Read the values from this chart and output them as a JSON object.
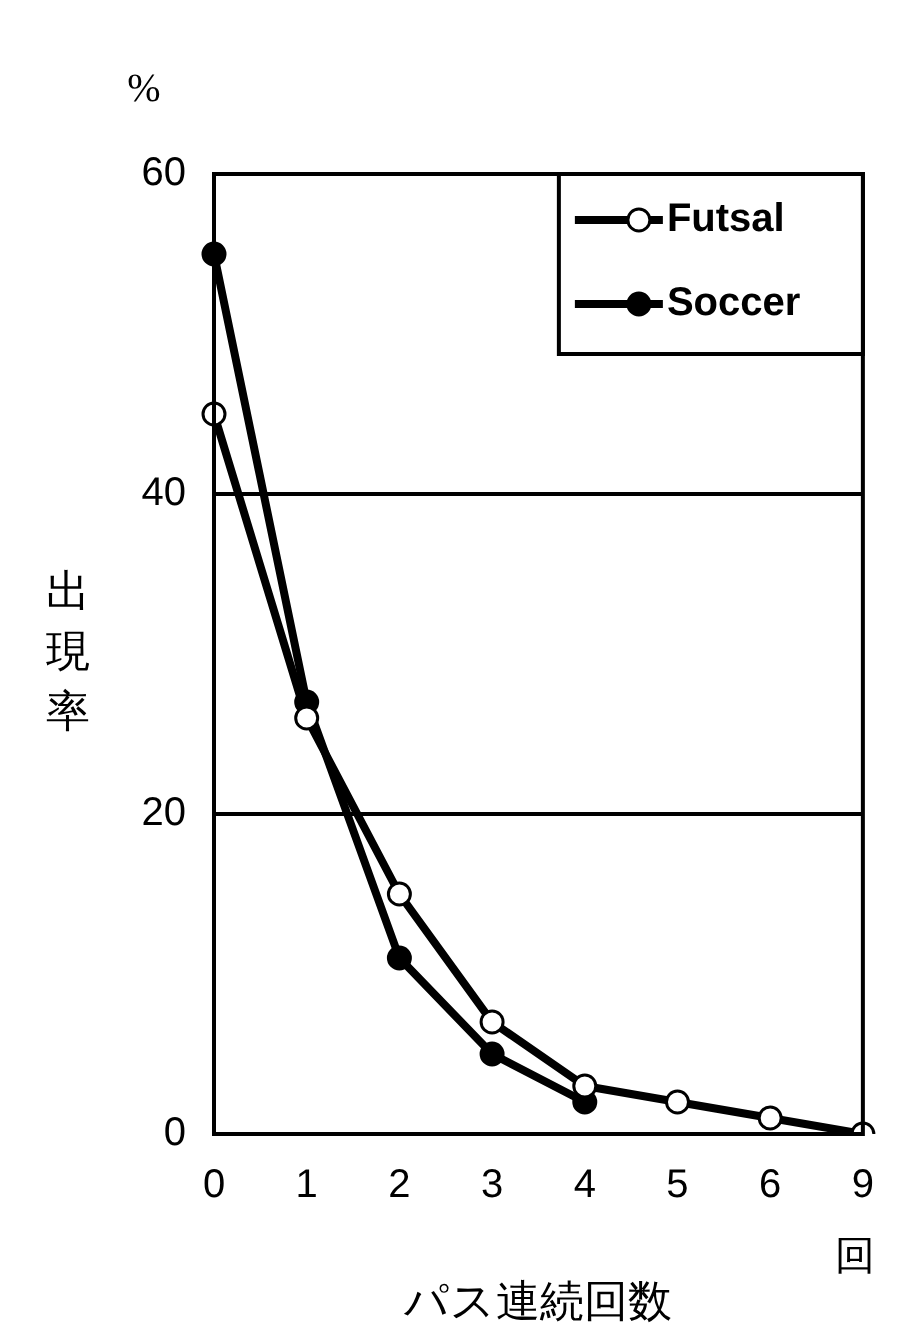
{
  "chart_data": {
    "type": "line",
    "ylabel": "出現率",
    "xlabel": "パス連続回数",
    "annotations": [
      "%",
      "回"
    ],
    "categories": [
      "0",
      "1",
      "2",
      "3",
      "4",
      "5",
      "6",
      "9"
    ],
    "series": [
      {
        "name": "Futsal",
        "color": "#ffffff",
        "values": [
          45,
          26,
          15,
          7,
          3,
          2,
          1,
          0
        ]
      },
      {
        "name": "Soccer",
        "color": "#000000",
        "values": [
          55,
          27,
          11,
          5,
          2,
          null,
          null,
          null
        ]
      }
    ],
    "ylim": [
      0,
      60
    ],
    "yticks": [
      0,
      20,
      40,
      60
    ],
    "grid": "y",
    "legend": "top right",
    "marker": "circle",
    "line_style": "solid"
  }
}
